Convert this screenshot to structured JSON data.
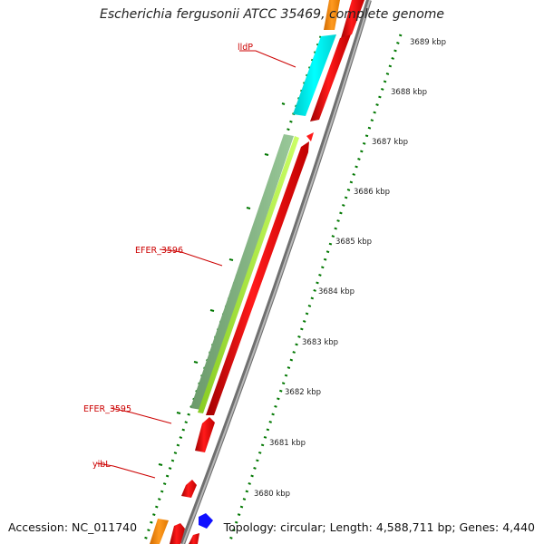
{
  "title": "Escherichia fergusonii ATCC 35469, complete genome",
  "accession": "Accession: NC_011740",
  "topology": "Topology: circular; Length: 4,588,711 bp; Genes: 4,440",
  "colors": {
    "cds": "#ff1a1a",
    "lldP": "#00ffff",
    "efer3596_outer": "#88bb88",
    "efer3596_inner": "#aaee33",
    "orange": "#ff8c00",
    "blue": "#1010ff",
    "backbone": "#888888",
    "ticks": "#007700",
    "label": "#cc0000"
  },
  "kbp_labels": [
    "3689 kbp",
    "3688 kbp",
    "3687 kbp",
    "3686 kbp",
    "3685 kbp",
    "3684 kbp",
    "3683 kbp",
    "3682 kbp",
    "3681 kbp",
    "3680 kbp"
  ],
  "gene_labels": [
    "lldP",
    "EFER_3596",
    "EFER_3595",
    "yibL"
  ]
}
